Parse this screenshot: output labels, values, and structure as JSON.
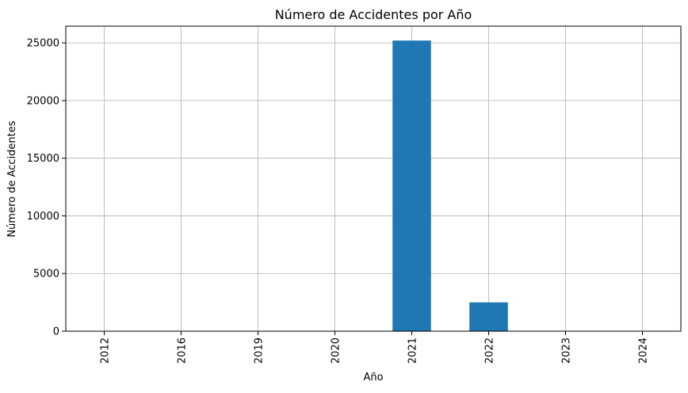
{
  "chart_data": {
    "type": "bar",
    "title": "Número de Accidentes por Año",
    "xlabel": "Año",
    "ylabel": "Número de Accidentes",
    "categories": [
      "2012",
      "2016",
      "2019",
      "2020",
      "2021",
      "2022",
      "2023",
      "2024"
    ],
    "values": [
      1,
      1,
      1,
      1,
      25200,
      2500,
      1,
      1
    ],
    "ylim": [
      0,
      26450
    ],
    "yticks": [
      0,
      5000,
      10000,
      15000,
      20000,
      25000
    ],
    "grid": true,
    "legend": "none",
    "colors": {
      "bar": "#1f77b4",
      "grid": "#b0b0b0",
      "axis": "#000000"
    }
  }
}
